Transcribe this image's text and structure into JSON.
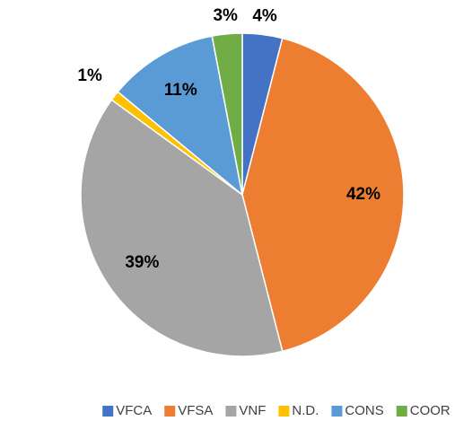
{
  "chart_data": {
    "type": "pie",
    "categories": [
      "VFCA",
      "VFSA",
      "VNF",
      "N.D.",
      "CONS",
      "COOR"
    ],
    "values": [
      4,
      42,
      39,
      1,
      11,
      3
    ],
    "value_labels": [
      "4%",
      "42%",
      "39%",
      "1%",
      "11%",
      "3%"
    ],
    "colors": [
      "#4472c4",
      "#ed7d31",
      "#a5a5a5",
      "#ffc000",
      "#5b9bd5",
      "#70ad47"
    ],
    "legend": "bottom"
  }
}
